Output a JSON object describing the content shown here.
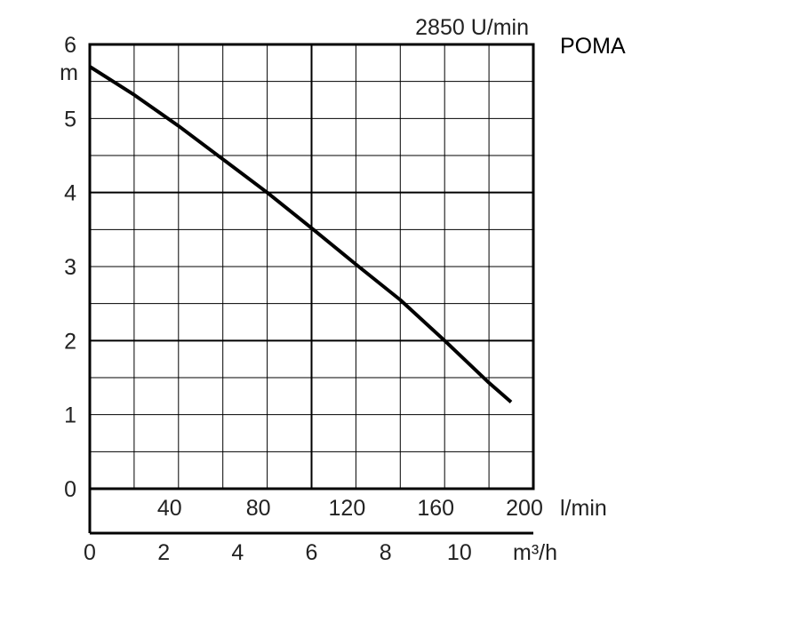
{
  "chart_data": {
    "type": "line",
    "title": "POMA",
    "speed_label": "2850 U/min",
    "ylabel": "m",
    "ylim": [
      0,
      6
    ],
    "yticks": [
      "0",
      "1",
      "2",
      "3",
      "4",
      "5",
      "6"
    ],
    "xlim_lmin": [
      0,
      200
    ],
    "x_lmin_ticks": [
      "40",
      "80",
      "120",
      "160",
      "200"
    ],
    "x_lmin_unit": "l/min",
    "xlim_m3h": [
      0,
      12
    ],
    "x_m3h_ticks": [
      "0",
      "2",
      "4",
      "6",
      "8",
      "10"
    ],
    "x_m3h_unit": "m³/h",
    "grid": true,
    "series": [
      {
        "x_lmin": [
          0,
          20,
          40,
          60,
          80,
          100,
          120,
          140,
          160,
          180,
          190
        ],
        "y": [
          5.7,
          5.32,
          4.9,
          4.45,
          4.0,
          3.52,
          3.03,
          2.55,
          2.0,
          1.43,
          1.17
        ]
      }
    ],
    "colors": {
      "line": "#000000",
      "grid": "#000000",
      "text": "#222222"
    }
  }
}
